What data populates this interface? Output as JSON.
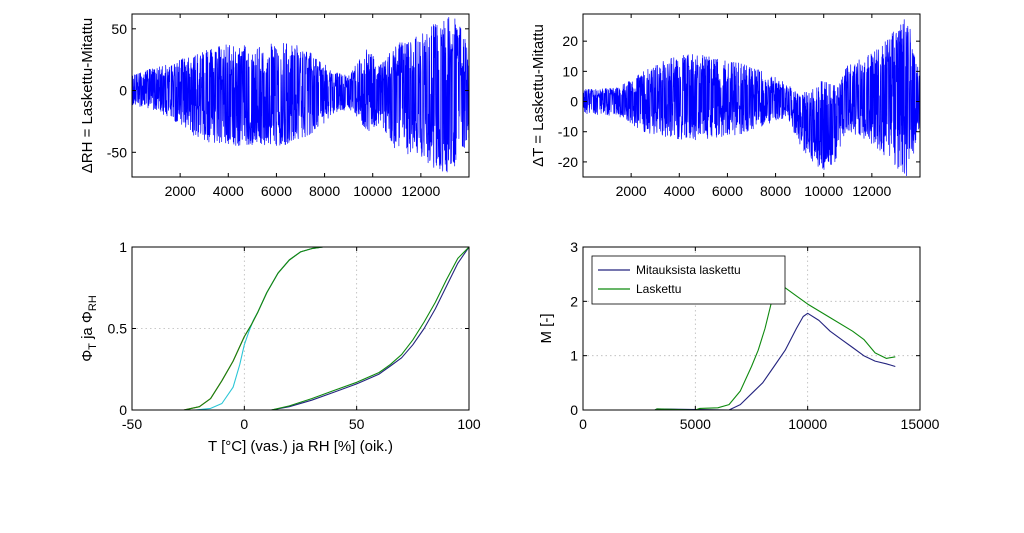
{
  "colors": {
    "blue": "#0000ff",
    "navy": "#24247f",
    "green": "#0f8a0f",
    "red": "#d62020",
    "cyan": "#2bc6d6"
  },
  "chart_data": [
    {
      "id": "a",
      "type": "line",
      "ylabel": "ΔRH = Laskettu-Mitattu",
      "xlim": [
        0,
        14000
      ],
      "ylim": [
        -70,
        62
      ],
      "xticks": [
        2000,
        4000,
        6000,
        8000,
        10000,
        12000
      ],
      "xtick_labels": [
        "2000",
        "4000",
        "6000",
        "8000",
        "10000",
        "12000"
      ],
      "yticks": [
        -50,
        0,
        50
      ],
      "ytick_labels": [
        "-50",
        "0",
        "50"
      ],
      "grid": false,
      "series": [
        {
          "color": "#0000ff",
          "style": "noise",
          "envelope": {
            "x": [
              0,
              800,
              1600,
              2400,
              3200,
              4200,
              5200,
              6200,
              7200,
              7800,
              8400,
              9000,
              9400,
              9800,
              10300,
              10800,
              11400,
              12000,
              12600,
              13000,
              13400,
              13900
            ],
            "min": [
              -12,
              -15,
              -22,
              -35,
              -42,
              -45,
              -44,
              -45,
              -38,
              -30,
              -18,
              -15,
              -22,
              -35,
              -28,
              -45,
              -55,
              -55,
              -65,
              -70,
              -68,
              -45
            ],
            "max": [
              12,
              18,
              22,
              28,
              35,
              38,
              37,
              40,
              35,
              25,
              15,
              12,
              25,
              35,
              20,
              35,
              42,
              45,
              55,
              62,
              62,
              40
            ]
          }
        }
      ]
    },
    {
      "id": "b",
      "type": "line",
      "ylabel": "ΔT = Laskettu-Mitattu",
      "xlim": [
        0,
        14000
      ],
      "ylim": [
        -25,
        29
      ],
      "xticks": [
        2000,
        4000,
        6000,
        8000,
        10000,
        12000
      ],
      "xtick_labels": [
        "2000",
        "4000",
        "6000",
        "8000",
        "10000",
        "12000"
      ],
      "yticks": [
        -20,
        -10,
        0,
        10,
        20
      ],
      "ytick_labels": [
        "-20",
        "-10",
        "0",
        "10",
        "20"
      ],
      "grid": false,
      "series": [
        {
          "color": "#0000ff",
          "style": "noise",
          "envelope": {
            "x": [
              0,
              1500,
              2500,
              3500,
              4500,
              5500,
              6500,
              7500,
              8500,
              9000,
              9500,
              10000,
              10500,
              11000,
              11500,
              12000,
              12500,
              13000,
              13500,
              13900
            ],
            "min": [
              -4,
              -5,
              -10,
              -12,
              -13,
              -12,
              -11,
              -8,
              -5,
              -15,
              -20,
              -23,
              -20,
              -10,
              -12,
              -14,
              -18,
              -22,
              -25,
              -12
            ],
            "max": [
              4,
              5,
              10,
              14,
              16,
              15,
              13,
              10,
              6,
              2,
              5,
              8,
              5,
              12,
              14,
              16,
              20,
              24,
              29,
              12
            ]
          }
        }
      ]
    },
    {
      "id": "c",
      "type": "line",
      "xlabel": "T [°C] (vas.) ja RH [%] (oik.)",
      "ylabel": "Φ",
      "ylabel_parts": [
        {
          "t": "Φ"
        },
        {
          "t": "T",
          "sub": true
        },
        {
          "t": " ja Φ"
        },
        {
          "t": "RH",
          "sub": true
        }
      ],
      "xlim": [
        -50,
        100
      ],
      "ylim": [
        0,
        1
      ],
      "xticks": [
        -50,
        0,
        50,
        100
      ],
      "xtick_labels": [
        "-50",
        "0",
        "50",
        "100"
      ],
      "yticks": [
        0,
        0.5,
        1
      ],
      "ytick_labels": [
        "0",
        "0.5",
        "1"
      ],
      "grid": true,
      "series": [
        {
          "color": "#d62020",
          "x": [
            -27,
            -20,
            -15,
            -10,
            -5,
            0,
            3,
            6,
            10,
            15,
            20,
            25,
            30,
            35,
            40
          ],
          "y": [
            0,
            0.02,
            0.07,
            0.18,
            0.3,
            0.45,
            0.52,
            0.6,
            0.72,
            0.84,
            0.92,
            0.97,
            0.99,
            1.0,
            1.0
          ]
        },
        {
          "color": "#2bc6d6",
          "x": [
            -22,
            -15,
            -10,
            -5,
            -2,
            0,
            2,
            4,
            6,
            10,
            15,
            20,
            25,
            30,
            35,
            40
          ],
          "y": [
            0,
            0.01,
            0.04,
            0.14,
            0.28,
            0.4,
            0.48,
            0.55,
            0.6,
            0.72,
            0.84,
            0.92,
            0.97,
            0.99,
            1.0,
            1.0
          ]
        },
        {
          "color": "#0f8a0f",
          "x": [
            -27,
            -20,
            -15,
            -10,
            -5,
            0,
            3,
            6,
            10,
            15,
            20,
            25,
            30,
            35,
            40
          ],
          "y": [
            0,
            0.02,
            0.07,
            0.18,
            0.3,
            0.45,
            0.52,
            0.6,
            0.72,
            0.84,
            0.92,
            0.97,
            0.99,
            1.0,
            1.0
          ]
        },
        {
          "color": "#24247f",
          "x": [
            12,
            20,
            30,
            40,
            50,
            60,
            65,
            70,
            75,
            80,
            85,
            90,
            95,
            100
          ],
          "y": [
            0,
            0.02,
            0.06,
            0.11,
            0.16,
            0.22,
            0.27,
            0.32,
            0.4,
            0.5,
            0.62,
            0.76,
            0.9,
            1.0
          ]
        },
        {
          "color": "#0f8a0f",
          "x": [
            12,
            20,
            30,
            40,
            50,
            60,
            65,
            70,
            75,
            80,
            85,
            90,
            95,
            100
          ],
          "y": [
            0,
            0.025,
            0.07,
            0.12,
            0.17,
            0.23,
            0.28,
            0.34,
            0.43,
            0.54,
            0.66,
            0.8,
            0.93,
            1.0
          ]
        }
      ]
    },
    {
      "id": "d",
      "type": "line",
      "ylabel": "M [-]",
      "xlim": [
        0,
        15000
      ],
      "ylim": [
        0,
        3
      ],
      "xticks": [
        0,
        5000,
        10000,
        15000
      ],
      "xtick_labels": [
        "0",
        "5000",
        "10000",
        "15000"
      ],
      "yticks": [
        0,
        1,
        2,
        3
      ],
      "ytick_labels": [
        "0",
        "1",
        "2",
        "3"
      ],
      "grid": true,
      "legend": {
        "placement": "top-left"
      },
      "series": [
        {
          "name": "Mitauksista laskettu",
          "color": "#24247f",
          "x": [
            0,
            3200,
            3300,
            6500,
            7000,
            7500,
            8000,
            8500,
            9000,
            9500,
            9800,
            10000,
            10500,
            11000,
            11500,
            12000,
            12500,
            13000,
            13500,
            13900
          ],
          "y": [
            0,
            0,
            0.02,
            0,
            0.1,
            0.3,
            0.5,
            0.8,
            1.1,
            1.5,
            1.72,
            1.78,
            1.65,
            1.45,
            1.3,
            1.15,
            1.0,
            0.9,
            0.85,
            0.8
          ]
        },
        {
          "name": "Laskettu",
          "color": "#0f8a0f",
          "x": [
            0,
            3200,
            3300,
            5000,
            5200,
            6000,
            6500,
            7000,
            7500,
            7800,
            8100,
            8400,
            8600,
            9000,
            9500,
            10000,
            11000,
            12000,
            12500,
            13000,
            13500,
            13900
          ],
          "y": [
            0,
            0,
            0.02,
            0,
            0.03,
            0.04,
            0.1,
            0.35,
            0.8,
            1.1,
            1.5,
            2.0,
            2.35,
            2.25,
            2.1,
            1.95,
            1.7,
            1.45,
            1.3,
            1.05,
            0.95,
            0.98
          ]
        }
      ]
    }
  ]
}
